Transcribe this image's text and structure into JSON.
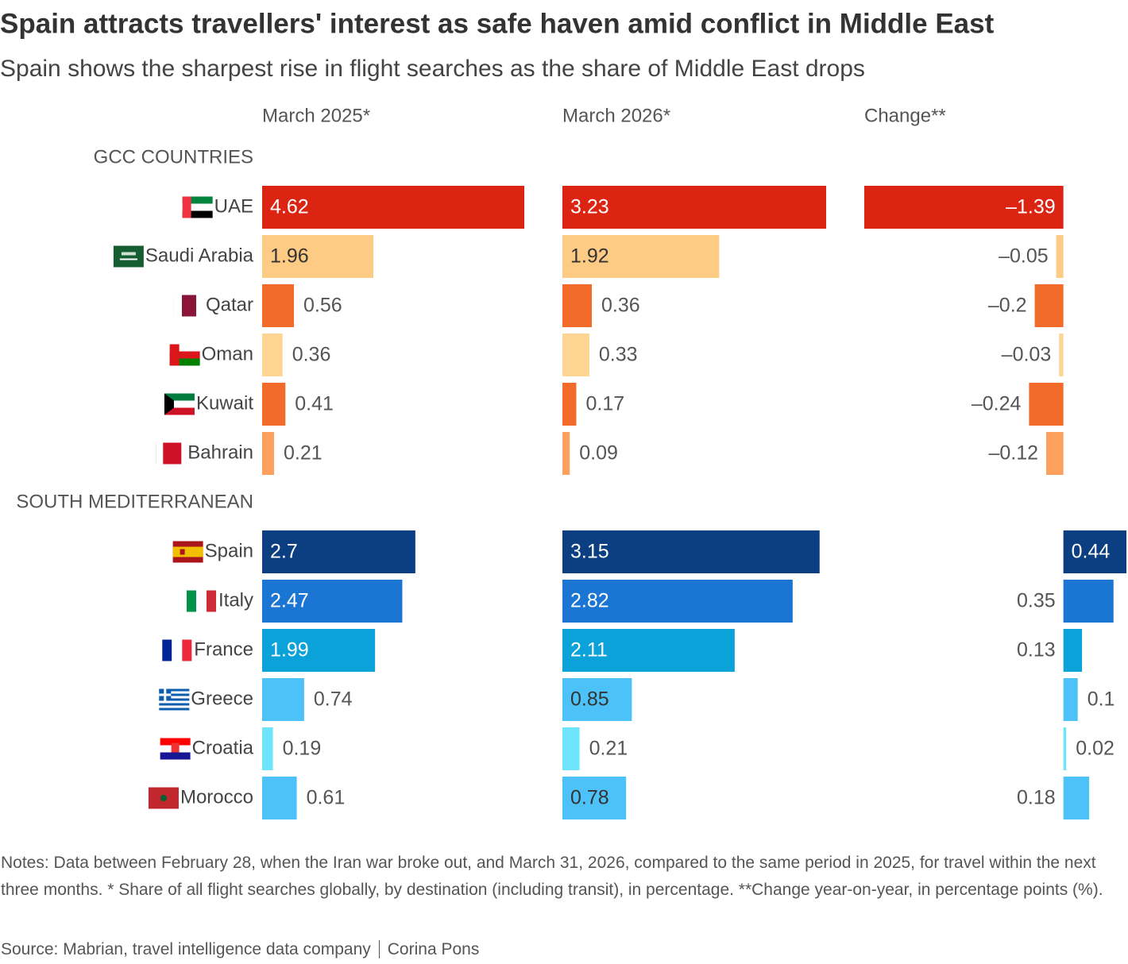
{
  "title": "Spain attracts travellers' interest as safe haven amid conflict in Middle East",
  "subtitle": "Spain shows the sharpest rise in flight searches as the share of Middle East drops",
  "rows": {
    "groups": [
      {
        "name": "GCC COUNTRIES",
        "categories": [
          "UAE",
          "Saudi Arabia",
          "Qatar",
          "Oman",
          "Kuwait",
          "Bahrain"
        ],
        "colors": [
          "#dc2413",
          "#fecb85",
          "#f26b2a",
          "#fed592",
          "#f26b2a",
          "#fda05e"
        ]
      },
      {
        "name": "SOUTH MEDITERRANEAN",
        "categories": [
          "Spain",
          "Italy",
          "France",
          "Greece",
          "Croatia",
          "Morocco"
        ],
        "colors": [
          "#0b3f82",
          "#1a76d2",
          "#0aa2d8",
          "#4cc2f8",
          "#6de4fb",
          "#4cc2f8"
        ]
      }
    ]
  },
  "chart_data": [
    {
      "type": "bar",
      "orientation": "horizontal",
      "title": "March 2025*",
      "xlim": [
        0,
        4.62
      ],
      "values": [
        4.62,
        1.96,
        0.56,
        0.36,
        0.41,
        0.21,
        2.7,
        2.47,
        1.99,
        0.74,
        0.19,
        0.61
      ]
    },
    {
      "type": "bar",
      "orientation": "horizontal",
      "title": "March 2026*",
      "xlim": [
        0,
        3.23
      ],
      "values": [
        3.23,
        1.92,
        0.36,
        0.33,
        0.17,
        0.09,
        3.15,
        2.82,
        2.11,
        0.85,
        0.21,
        0.78
      ]
    },
    {
      "type": "bar",
      "orientation": "horizontal",
      "title": "Change**",
      "xlim": [
        -1.39,
        0.44
      ],
      "values": [
        -1.39,
        -0.05,
        -0.2,
        -0.03,
        -0.24,
        -0.12,
        0.44,
        0.35,
        0.13,
        0.1,
        0.02,
        0.18
      ],
      "value_labels": [
        "–1.39",
        "–0.05",
        "–0.2",
        "–0.03",
        "–0.24",
        "–0.12",
        "0.44",
        "0.35",
        "0.13",
        "0.1",
        "0.02",
        "0.18"
      ]
    }
  ],
  "notes": "Notes: Data between February 28, when the Iran war broke out, and March 31, 2026, compared to the same period in 2025, for travel within the next three months. * Share of all flight searches globally, by destination (including transit), in percentage. **Change year-on-year, in percentage points (%).",
  "source": "Source: Mabrian, travel intelligence data company",
  "author": "Corina Pons"
}
